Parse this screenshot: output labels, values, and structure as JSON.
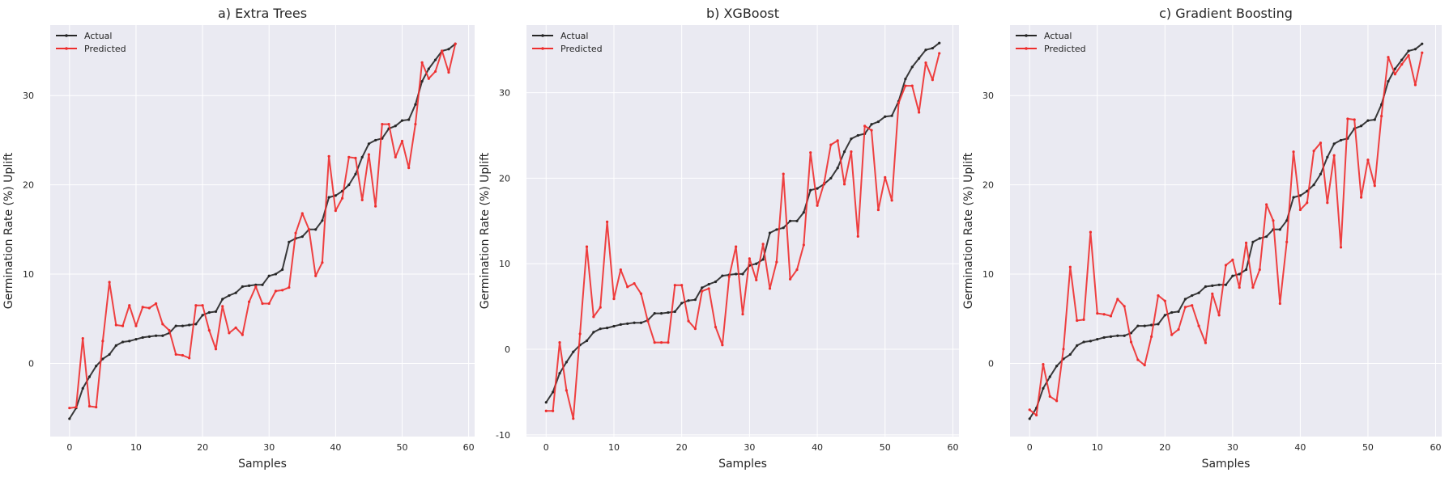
{
  "chart_data": [
    {
      "type": "line",
      "title": "a) Extra Trees",
      "xlabel": "Samples",
      "ylabel": "Germination Rate (%) Uplift",
      "xlim": [
        -2.9,
        60.9
      ],
      "ylim": [
        -8.2,
        37.9
      ],
      "xticks": [
        0,
        10,
        20,
        30,
        40,
        50,
        60
      ],
      "yticks": [
        0,
        10,
        20,
        30
      ],
      "grid": true,
      "legend": "top-left",
      "series": [
        {
          "name": "Actual",
          "color": "#262626",
          "values": [
            -6.2,
            -5.0,
            -2.8,
            -1.5,
            -0.3,
            0.5,
            1.0,
            2.0,
            2.4,
            2.5,
            2.7,
            2.9,
            3.0,
            3.1,
            3.1,
            3.4,
            4.2,
            4.2,
            4.3,
            4.4,
            5.4,
            5.7,
            5.8,
            7.2,
            7.6,
            7.9,
            8.6,
            8.7,
            8.8,
            8.8,
            9.8,
            10.0,
            10.5,
            13.6,
            14.0,
            14.2,
            15.0,
            15.0,
            16.0,
            18.6,
            18.8,
            19.3,
            20.0,
            21.2,
            23.1,
            24.6,
            25.0,
            25.2,
            26.3,
            26.6,
            27.2,
            27.3,
            29.0,
            31.6,
            33.0,
            34.0,
            35.0,
            35.2,
            35.8
          ]
        },
        {
          "name": "Predicted",
          "color": "#ee2e2e",
          "values": [
            -5.0,
            -4.9,
            2.8,
            -4.8,
            -4.9,
            2.5,
            9.1,
            4.3,
            4.2,
            6.5,
            4.2,
            6.3,
            6.2,
            6.7,
            4.4,
            3.7,
            1.0,
            0.9,
            0.6,
            6.5,
            6.5,
            3.7,
            1.6,
            6.4,
            3.4,
            4.0,
            3.2,
            6.9,
            8.6,
            6.7,
            6.7,
            8.1,
            8.2,
            8.5,
            14.6,
            16.8,
            15.0,
            9.8,
            11.3,
            23.2,
            17.1,
            18.5,
            23.1,
            23.0,
            18.3,
            23.4,
            17.6,
            26.8,
            26.8,
            23.1,
            24.9,
            21.9,
            26.8,
            33.7,
            31.9,
            32.7,
            35.0,
            32.6,
            35.8
          ]
        }
      ]
    },
    {
      "type": "line",
      "title": "b) XGBoost",
      "xlabel": "Samples",
      "ylabel": "Germination Rate (%) Uplift",
      "xlim": [
        -2.9,
        60.9
      ],
      "ylim": [
        -10.2,
        37.9
      ],
      "xticks": [
        0,
        10,
        20,
        30,
        40,
        50,
        60
      ],
      "yticks": [
        -10,
        0,
        10,
        20,
        30
      ],
      "grid": true,
      "legend": "top-left",
      "series": [
        {
          "name": "Actual",
          "color": "#262626",
          "values": [
            -6.2,
            -5.0,
            -2.8,
            -1.5,
            -0.3,
            0.5,
            1.0,
            2.0,
            2.4,
            2.5,
            2.7,
            2.9,
            3.0,
            3.1,
            3.1,
            3.4,
            4.2,
            4.2,
            4.3,
            4.4,
            5.4,
            5.7,
            5.8,
            7.2,
            7.6,
            7.9,
            8.6,
            8.7,
            8.8,
            8.8,
            9.8,
            10.0,
            10.5,
            13.6,
            14.0,
            14.2,
            15.0,
            15.0,
            16.0,
            18.6,
            18.8,
            19.3,
            20.0,
            21.2,
            23.1,
            24.6,
            25.0,
            25.2,
            26.3,
            26.6,
            27.2,
            27.3,
            29.0,
            31.6,
            33.0,
            34.0,
            35.0,
            35.2,
            35.8
          ]
        },
        {
          "name": "Predicted",
          "color": "#ee2e2e",
          "values": [
            -7.2,
            -7.2,
            0.8,
            -4.8,
            -8.1,
            1.8,
            12.0,
            3.8,
            4.9,
            14.9,
            5.9,
            9.3,
            7.3,
            7.7,
            6.5,
            3.3,
            0.8,
            0.8,
            0.8,
            7.5,
            7.5,
            3.3,
            2.4,
            6.8,
            7.1,
            2.6,
            0.5,
            8.5,
            12.0,
            4.1,
            10.6,
            8.1,
            12.3,
            7.1,
            10.2,
            20.5,
            8.2,
            9.3,
            12.2,
            23.0,
            16.8,
            19.4,
            23.9,
            24.4,
            19.3,
            23.1,
            13.2,
            26.1,
            25.6,
            16.3,
            20.1,
            17.4,
            28.8,
            30.8,
            30.8,
            27.7,
            33.5,
            31.5,
            34.6
          ]
        }
      ]
    },
    {
      "type": "line",
      "title": "c) Gradient Boosting",
      "xlabel": "Samples",
      "ylabel": "Germination Rate (%) Uplift",
      "xlim": [
        -2.9,
        60.9
      ],
      "ylim": [
        -8.2,
        37.9
      ],
      "xticks": [
        0,
        10,
        20,
        30,
        40,
        50,
        60
      ],
      "yticks": [
        0,
        10,
        20,
        30
      ],
      "grid": true,
      "legend": "top-left",
      "series": [
        {
          "name": "Actual",
          "color": "#262626",
          "values": [
            -6.2,
            -5.0,
            -2.8,
            -1.5,
            -0.3,
            0.5,
            1.0,
            2.0,
            2.4,
            2.5,
            2.7,
            2.9,
            3.0,
            3.1,
            3.1,
            3.4,
            4.2,
            4.2,
            4.3,
            4.4,
            5.4,
            5.7,
            5.8,
            7.2,
            7.6,
            7.9,
            8.6,
            8.7,
            8.8,
            8.8,
            9.8,
            10.0,
            10.5,
            13.6,
            14.0,
            14.2,
            15.0,
            15.0,
            16.0,
            18.6,
            18.8,
            19.3,
            20.0,
            21.2,
            23.1,
            24.6,
            25.0,
            25.2,
            26.3,
            26.6,
            27.2,
            27.3,
            29.0,
            31.6,
            33.0,
            34.0,
            35.0,
            35.2,
            35.8
          ]
        },
        {
          "name": "Predicted",
          "color": "#ee2e2e",
          "values": [
            -5.2,
            -5.8,
            -0.1,
            -3.7,
            -4.2,
            1.6,
            10.8,
            4.8,
            4.9,
            14.7,
            5.6,
            5.5,
            5.3,
            7.2,
            6.4,
            2.4,
            0.4,
            -0.2,
            3.0,
            7.6,
            7.0,
            3.2,
            3.8,
            6.3,
            6.5,
            4.2,
            2.3,
            7.8,
            5.4,
            11.0,
            11.6,
            8.5,
            13.5,
            8.5,
            10.5,
            17.8,
            16.0,
            6.7,
            13.6,
            23.7,
            17.2,
            18.0,
            23.8,
            24.7,
            18.0,
            23.3,
            13.0,
            27.4,
            27.3,
            18.6,
            22.8,
            19.9,
            27.7,
            34.3,
            32.4,
            33.5,
            34.5,
            31.2,
            34.8
          ]
        }
      ]
    }
  ]
}
